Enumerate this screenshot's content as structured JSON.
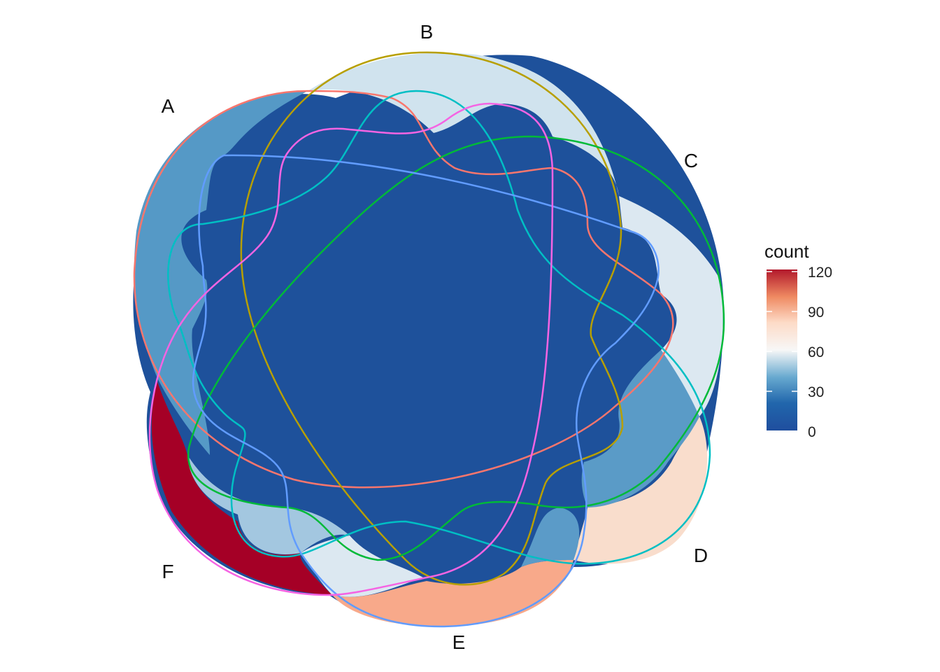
{
  "chart_data": {
    "type": "venn",
    "sets": [
      {
        "name": "A",
        "outline_color": "#F8766D"
      },
      {
        "name": "B",
        "outline_color": "#B79F00"
      },
      {
        "name": "C",
        "outline_color": "#00BA38"
      },
      {
        "name": "D",
        "outline_color": "#00BFC4"
      },
      {
        "name": "E",
        "outline_color": "#619CFF"
      },
      {
        "name": "F",
        "outline_color": "#F564E3"
      }
    ],
    "region_counts": [
      {
        "sets": [
          "F"
        ],
        "count": 120
      },
      {
        "sets": [
          "E"
        ],
        "count": 88
      },
      {
        "sets": [
          "D"
        ],
        "count": 68
      },
      {
        "sets": [
          "C"
        ],
        "count": 52
      },
      {
        "sets": [
          "B"
        ],
        "count": 48
      },
      {
        "sets": [
          "A"
        ],
        "count": 18
      },
      {
        "sets": [
          "E",
          "F"
        ],
        "count": 50
      },
      {
        "sets": [
          "D",
          "E"
        ],
        "count": 18
      },
      {
        "sets": [
          "C",
          "D"
        ],
        "count": 18
      },
      {
        "sets": [
          "B",
          "C"
        ],
        "count": 12
      },
      {
        "sets": [
          "A",
          "B"
        ],
        "count": 5
      }
    ],
    "legend": {
      "title": "count",
      "ticks": [
        120,
        90,
        60,
        30,
        0
      ],
      "range": [
        0,
        120
      ],
      "palette": [
        "#B2182B",
        "#EF8A62",
        "#FDDBC7",
        "#F7F7F7",
        "#D1E5F0",
        "#67A9CF",
        "#2166AC"
      ],
      "placement": "right"
    }
  }
}
